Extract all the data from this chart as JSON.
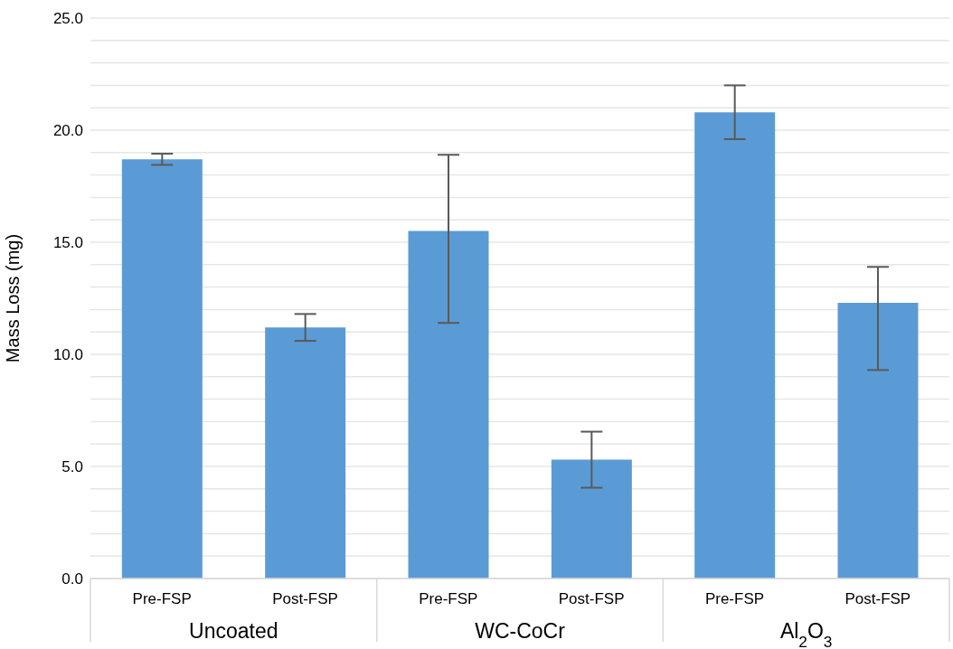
{
  "chart_data": {
    "type": "bar",
    "ylabel": "Mass Loss (mg)",
    "categories": [
      "Pre-FSP",
      "Post-FSP",
      "Pre-FSP",
      "Post-FSP",
      "Pre-FSP",
      "Post-FSP"
    ],
    "values": [
      18.7,
      11.2,
      15.5,
      5.3,
      20.8,
      12.3
    ],
    "errors": [
      0.25,
      0.6,
      [
        11.4,
        18.9
      ],
      1.25,
      1.2,
      [
        9.3,
        13.9
      ]
    ],
    "color": "#5b9bd5",
    "annotations": [
      "Uncoated",
      "WC-CoCr",
      "Al$_{2}$O$_{3}$"
    ],
    "ylim": [
      0,
      25
    ],
    "yticks": [
      {
        "value": 0,
        "label": "0.0"
      },
      {
        "value": 1,
        "label": null
      },
      {
        "value": 2,
        "label": null
      },
      {
        "value": 3,
        "label": null
      },
      {
        "value": 4,
        "label": null
      },
      {
        "value": 5,
        "label": "5.0"
      },
      {
        "value": 6,
        "label": null
      },
      {
        "value": 7,
        "label": null
      },
      {
        "value": 8,
        "label": null
      },
      {
        "value": 9,
        "label": null
      },
      {
        "value": 10,
        "label": "10.0"
      },
      {
        "value": 11,
        "label": null
      },
      {
        "value": 12,
        "label": null
      },
      {
        "value": 13,
        "label": null
      },
      {
        "value": 14,
        "label": null
      },
      {
        "value": 15,
        "label": "15.0"
      },
      {
        "value": 16,
        "label": null
      },
      {
        "value": 17,
        "label": null
      },
      {
        "value": 18,
        "label": null
      },
      {
        "value": 19,
        "label": null
      },
      {
        "value": 20,
        "label": "20.0"
      },
      {
        "value": 21,
        "label": null
      },
      {
        "value": 22,
        "label": null
      },
      {
        "value": 23,
        "label": null
      },
      {
        "value": 24,
        "label": null
      },
      {
        "value": 25,
        "label": "25.0"
      }
    ],
    "grid": "y",
    "legend": false
  }
}
